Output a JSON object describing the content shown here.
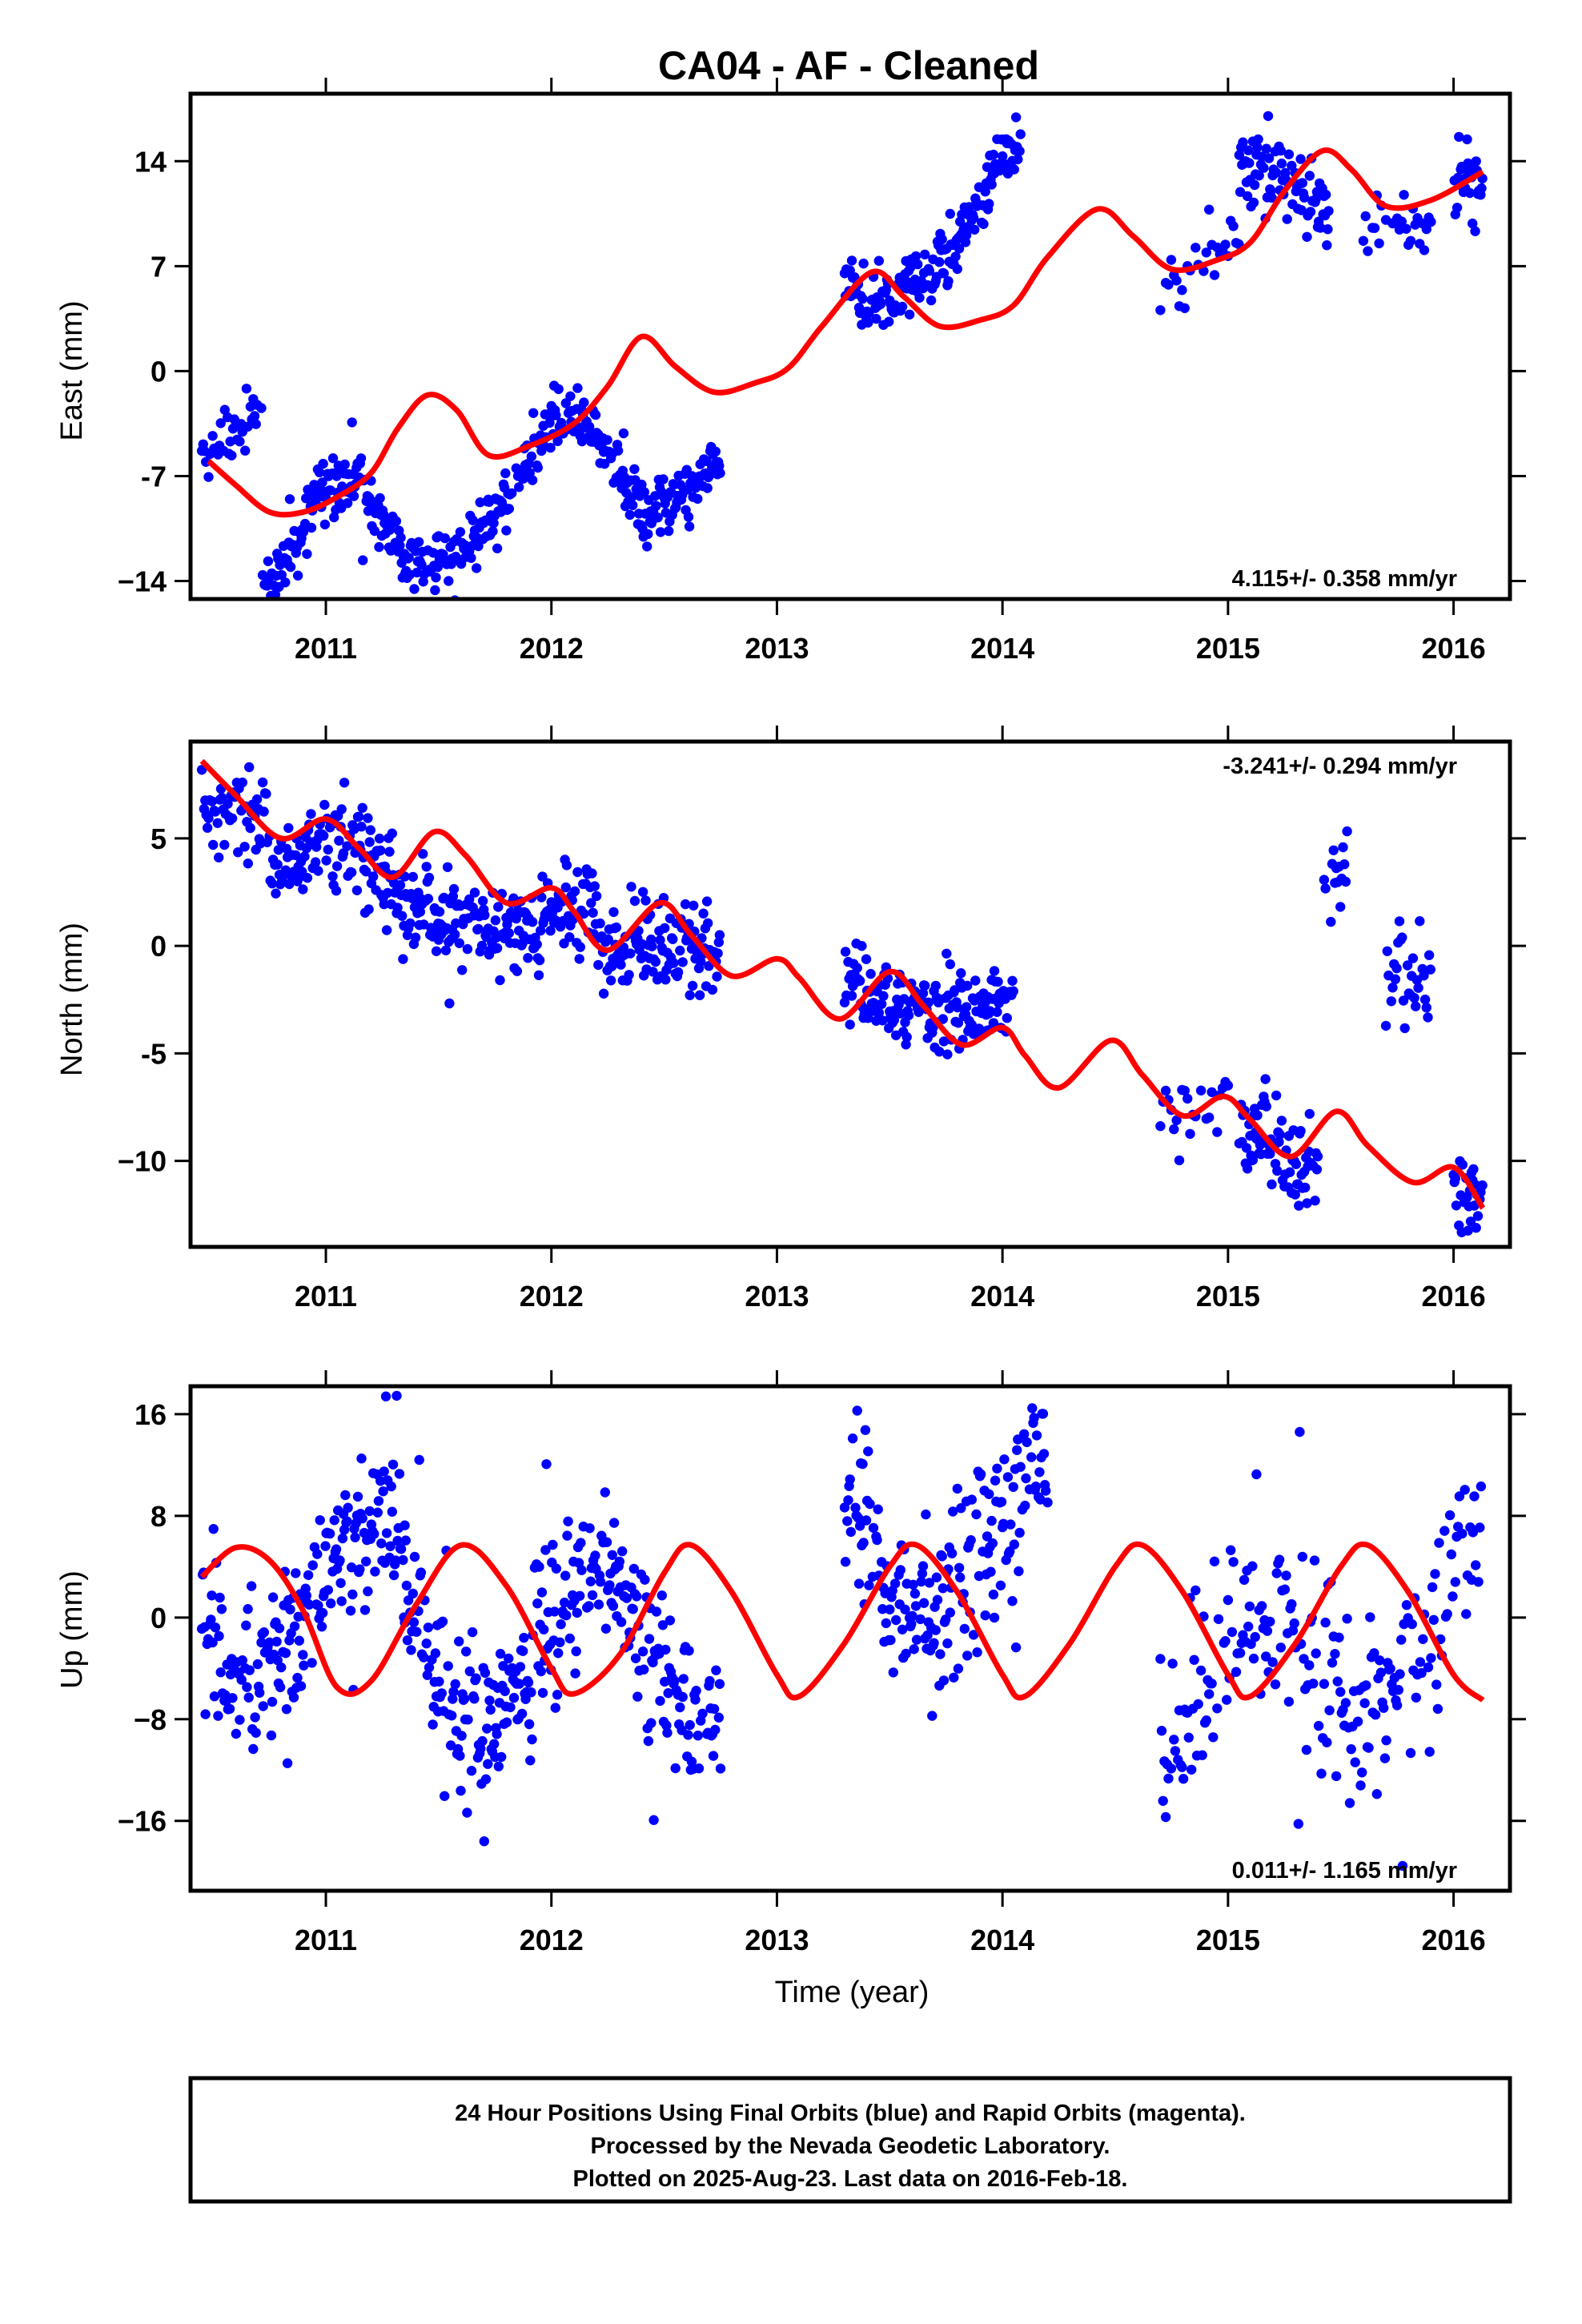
{
  "figure": {
    "title": "CA04  - AF - Cleaned",
    "caption": [
      "24 Hour Positions Using Final Orbits (blue) and Rapid Orbits (magenta).",
      "Processed by the Nevada Geodetic Laboratory.",
      "Plotted on 2025-Aug-23. Last data on 2016-Feb-18."
    ],
    "xlabel": "Time (year)"
  },
  "chart_data": [
    {
      "type": "scatter",
      "ylabel": "East (mm)",
      "rate_text": "4.115+/- 0.358 mm/yr",
      "rate_position": "bottom-right",
      "xlim": [
        2010.4,
        2016.25
      ],
      "ylim": [
        -15.2,
        18.5
      ],
      "xticks": [
        2011,
        2012,
        2013,
        2014,
        2015,
        2016
      ],
      "xtick_labels": [
        "2011",
        "2012",
        "2013",
        "2014",
        "2015",
        "2016"
      ],
      "yticks": [
        -14,
        -7,
        0,
        7,
        14
      ],
      "ytick_labels": [
        "−14",
        "-7",
        "0",
        "7",
        "14"
      ],
      "series": [
        {
          "role": "daily positions",
          "color": "#0000ff",
          "segments": [
            {
              "start": 2010.45,
              "end": 2010.72,
              "at": 2010.45,
              "level": -5.5,
              "rate": 4.115,
              "annual_amp": 3.8,
              "annual_phase": 1.3,
              "semi_amp": 0.8,
              "semi_phase": 0.3,
              "noise": 1.0,
              "step": 0.006
            },
            {
              "start": 2010.72,
              "end": 2011.4,
              "at": 2011.0,
              "level": -7.8,
              "rate": 4.115,
              "annual_amp": 3.8,
              "annual_phase": 1.3,
              "semi_amp": 0.8,
              "semi_phase": 0.3,
              "noise": 1.0,
              "step": 0.004
            },
            {
              "start": 2011.4,
              "end": 2012.75,
              "at": 2012.0,
              "level": -3.6,
              "rate": 4.115,
              "annual_amp": 3.8,
              "annual_phase": 1.3,
              "semi_amp": 0.8,
              "semi_phase": 0.3,
              "noise": 1.0,
              "step": 0.004
            },
            {
              "start": 2013.3,
              "end": 2014.08,
              "at": 2013.5,
              "level": 4.5,
              "rate": 4.115,
              "annual_amp": 3.8,
              "annual_phase": 1.3,
              "semi_amp": 0.8,
              "semi_phase": 0.3,
              "noise": 1.0,
              "step": 0.004
            },
            {
              "start": 2014.7,
              "end": 2015.05,
              "at": 2014.85,
              "level": 7.0,
              "rate": 4.115,
              "annual_amp": 1.5,
              "annual_phase": 1.3,
              "semi_amp": 0.4,
              "semi_phase": 0.3,
              "noise": 1.0,
              "step": 0.012
            },
            {
              "start": 2015.05,
              "end": 2015.45,
              "at": 2015.3,
              "level": 12.0,
              "rate": 4.115,
              "annual_amp": 2.0,
              "annual_phase": 1.3,
              "semi_amp": 0.4,
              "semi_phase": 0.3,
              "noise": 1.3,
              "step": 0.004
            },
            {
              "start": 2015.6,
              "end": 2015.9,
              "at": 2015.75,
              "level": 9.8,
              "rate": 0.0,
              "annual_amp": 0.0,
              "annual_phase": 0.0,
              "semi_amp": 0.0,
              "semi_phase": 0.0,
              "noise": 1.2,
              "step": 0.01
            },
            {
              "start": 2016.0,
              "end": 2016.13,
              "at": 2016.05,
              "level": 12.3,
              "rate": 0.0,
              "annual_amp": 0.0,
              "annual_phase": 0.0,
              "semi_amp": 0.0,
              "semi_phase": 0.0,
              "noise": 1.2,
              "step": 0.004
            }
          ]
        },
        {
          "role": "model fit",
          "color": "#ff0000",
          "points": [
            [
              2010.48,
              -6.0
            ],
            [
              2010.6,
              -7.6
            ],
            [
              2010.75,
              -9.4
            ],
            [
              2010.9,
              -9.4
            ],
            [
              2011.05,
              -8.4
            ],
            [
              2011.2,
              -6.8
            ],
            [
              2011.32,
              -3.8
            ],
            [
              2011.45,
              -1.6
            ],
            [
              2011.58,
              -2.6
            ],
            [
              2011.72,
              -5.6
            ],
            [
              2011.9,
              -5.0
            ],
            [
              2012.1,
              -3.5
            ],
            [
              2012.25,
              -1.0
            ],
            [
              2012.4,
              2.3
            ],
            [
              2012.55,
              0.3
            ],
            [
              2012.72,
              -1.4
            ],
            [
              2012.9,
              -0.8
            ],
            [
              2013.05,
              0.2
            ],
            [
              2013.2,
              3.0
            ],
            [
              2013.42,
              6.6
            ],
            [
              2013.56,
              5.0
            ],
            [
              2013.72,
              3.0
            ],
            [
              2013.9,
              3.4
            ],
            [
              2014.05,
              4.4
            ],
            [
              2014.2,
              7.6
            ],
            [
              2014.42,
              10.8
            ],
            [
              2014.58,
              9.0
            ],
            [
              2014.75,
              6.8
            ],
            [
              2014.95,
              7.4
            ],
            [
              2015.1,
              8.6
            ],
            [
              2015.25,
              12.0
            ],
            [
              2015.42,
              14.7
            ],
            [
              2015.55,
              13.4
            ],
            [
              2015.7,
              11.0
            ],
            [
              2015.9,
              11.4
            ],
            [
              2016.13,
              13.3
            ]
          ]
        }
      ]
    },
    {
      "type": "scatter",
      "ylabel": "North (mm)",
      "rate_text": "-3.241+/- 0.294 mm/yr",
      "rate_position": "top-right",
      "xlim": [
        2010.4,
        2016.25
      ],
      "ylim": [
        -14.0,
        9.5
      ],
      "xticks": [
        2011,
        2012,
        2013,
        2014,
        2015,
        2016
      ],
      "xtick_labels": [
        "2011",
        "2012",
        "2013",
        "2014",
        "2015",
        "2016"
      ],
      "yticks": [
        -10,
        -5,
        0,
        5
      ],
      "ytick_labels": [
        "−10",
        "-5",
        "0",
        "5"
      ],
      "series": [
        {
          "role": "daily positions",
          "color": "#0000ff",
          "segments": [
            {
              "start": 2010.45,
              "end": 2010.75,
              "at": 2010.6,
              "level": 6.5,
              "rate": -3.241,
              "annual_amp": 1.2,
              "annual_phase": 1.0,
              "semi_amp": 0.4,
              "semi_phase": 0.0,
              "noise": 1.0,
              "step": 0.005
            },
            {
              "start": 2010.75,
              "end": 2011.5,
              "at": 2011.1,
              "level": 5.0,
              "rate": -3.241,
              "annual_amp": 1.2,
              "annual_phase": 1.0,
              "semi_amp": 0.4,
              "semi_phase": 0.0,
              "noise": 1.1,
              "step": 0.004
            },
            {
              "start": 2011.5,
              "end": 2012.35,
              "at": 2012.0,
              "level": 1.6,
              "rate": -3.241,
              "annual_amp": 1.2,
              "annual_phase": 1.0,
              "semi_amp": 0.4,
              "semi_phase": 0.0,
              "noise": 1.0,
              "step": 0.004
            },
            {
              "start": 2012.35,
              "end": 2012.75,
              "at": 2012.55,
              "level": 0.0,
              "rate": -3.241,
              "annual_amp": 1.2,
              "annual_phase": 1.0,
              "semi_amp": 0.4,
              "semi_phase": 0.0,
              "noise": 1.0,
              "step": 0.004
            },
            {
              "start": 2013.3,
              "end": 2014.05,
              "at": 2013.7,
              "level": -3.0,
              "rate": -3.241,
              "annual_amp": 1.2,
              "annual_phase": 1.0,
              "semi_amp": 0.4,
              "semi_phase": 0.0,
              "noise": 1.0,
              "step": 0.004
            },
            {
              "start": 2014.7,
              "end": 2015.0,
              "at": 2014.85,
              "level": -7.5,
              "rate": -3.241,
              "annual_amp": 0.5,
              "annual_phase": 1.0,
              "semi_amp": 0.0,
              "semi_phase": 0.0,
              "noise": 0.8,
              "step": 0.012
            },
            {
              "start": 2015.05,
              "end": 2015.4,
              "at": 2015.2,
              "level": -9.3,
              "rate": -3.241,
              "annual_amp": 0.5,
              "annual_phase": 1.0,
              "semi_amp": 0.0,
              "semi_phase": 0.0,
              "noise": 1.0,
              "step": 0.004
            },
            {
              "start": 2015.42,
              "end": 2015.53,
              "at": 2015.47,
              "level": 3.0,
              "rate": 0.0,
              "annual_amp": 0.0,
              "annual_phase": 0.0,
              "semi_amp": 0.0,
              "semi_phase": 0.0,
              "noise": 1.0,
              "step": 0.006
            },
            {
              "start": 2015.7,
              "end": 2015.9,
              "at": 2015.8,
              "level": -1.0,
              "rate": 0.0,
              "annual_amp": 0.0,
              "annual_phase": 0.0,
              "semi_amp": 0.0,
              "semi_phase": 0.0,
              "noise": 1.3,
              "step": 0.006
            },
            {
              "start": 2016.0,
              "end": 2016.13,
              "at": 2016.07,
              "level": -11.8,
              "rate": 0.0,
              "annual_amp": 0.0,
              "annual_phase": 0.0,
              "semi_amp": 0.0,
              "semi_phase": 0.0,
              "noise": 1.0,
              "step": 0.004
            }
          ]
        },
        {
          "role": "model fit",
          "color": "#ff0000",
          "points": [
            [
              2010.45,
              8.6
            ],
            [
              2010.6,
              7.0
            ],
            [
              2010.8,
              5.0
            ],
            [
              2011.0,
              5.9
            ],
            [
              2011.15,
              4.5
            ],
            [
              2011.3,
              3.2
            ],
            [
              2011.48,
              5.3
            ],
            [
              2011.62,
              4.2
            ],
            [
              2011.8,
              2.0
            ],
            [
              2012.0,
              2.7
            ],
            [
              2012.1,
              1.6
            ],
            [
              2012.25,
              -0.2
            ],
            [
              2012.48,
              2.0
            ],
            [
              2012.62,
              0.5
            ],
            [
              2012.8,
              -1.4
            ],
            [
              2013.0,
              -0.6
            ],
            [
              2013.1,
              -1.5
            ],
            [
              2013.28,
              -3.4
            ],
            [
              2013.5,
              -1.2
            ],
            [
              2013.65,
              -2.8
            ],
            [
              2013.82,
              -4.6
            ],
            [
              2014.0,
              -3.8
            ],
            [
              2014.1,
              -5.1
            ],
            [
              2014.25,
              -6.6
            ],
            [
              2014.48,
              -4.4
            ],
            [
              2014.62,
              -6.0
            ],
            [
              2014.8,
              -7.9
            ],
            [
              2014.98,
              -7.0
            ],
            [
              2015.1,
              -8.1
            ],
            [
              2015.28,
              -9.8
            ],
            [
              2015.48,
              -7.7
            ],
            [
              2015.62,
              -9.3
            ],
            [
              2015.82,
              -11.0
            ],
            [
              2016.0,
              -10.3
            ],
            [
              2016.13,
              -12.2
            ]
          ]
        }
      ]
    },
    {
      "type": "scatter",
      "ylabel": "Up (mm)",
      "rate_text": "0.011+/- 1.165 mm/yr",
      "rate_position": "bottom-right",
      "xlim": [
        2010.4,
        2016.25
      ],
      "ylim": [
        -21.5,
        18.2
      ],
      "xticks": [
        2011,
        2012,
        2013,
        2014,
        2015,
        2016
      ],
      "xtick_labels": [
        "2011",
        "2012",
        "2013",
        "2014",
        "2015",
        "2016"
      ],
      "yticks": [
        -16,
        -8,
        0,
        8,
        16
      ],
      "ytick_labels": [
        "−16",
        "−8",
        "0",
        "8",
        "16"
      ],
      "series": [
        {
          "role": "daily positions",
          "color": "#0000ff",
          "segments": [
            {
              "start": 2010.45,
              "end": 2011.35,
              "at": 2010.9,
              "level": 0.0,
              "rate": 0.011,
              "annual_amp": 6.0,
              "annual_phase": 0.4,
              "semi_amp": 0.0,
              "semi_phase": 0.0,
              "noise": 3.4,
              "step": 0.004
            },
            {
              "start": 2011.35,
              "end": 2012.75,
              "at": 2012.0,
              "level": 0.0,
              "rate": 0.011,
              "annual_amp": 6.0,
              "annual_phase": 0.4,
              "semi_amp": 0.0,
              "semi_phase": 0.0,
              "noise": 3.2,
              "step": 0.004
            },
            {
              "start": 2013.3,
              "end": 2014.2,
              "at": 2013.7,
              "level": 0.0,
              "rate": 0.011,
              "annual_amp": 6.0,
              "annual_phase": 0.4,
              "semi_amp": 0.0,
              "semi_phase": 0.0,
              "noise": 3.4,
              "step": 0.004
            },
            {
              "start": 2014.7,
              "end": 2015.6,
              "at": 2015.1,
              "level": 0.0,
              "rate": 0.011,
              "annual_amp": 6.0,
              "annual_phase": 0.4,
              "semi_amp": 0.0,
              "semi_phase": 0.0,
              "noise": 4.2,
              "step": 0.006
            },
            {
              "start": 2015.6,
              "end": 2016.13,
              "at": 2015.9,
              "level": 0.0,
              "rate": 0.011,
              "annual_amp": 6.0,
              "annual_phase": 0.4,
              "semi_amp": 0.0,
              "semi_phase": 0.0,
              "noise": 4.0,
              "step": 0.006
            }
          ]
        },
        {
          "role": "model fit",
          "color": "#ff0000",
          "points": [
            [
              2010.45,
              3.2
            ],
            [
              2010.6,
              5.5
            ],
            [
              2010.75,
              4.5
            ],
            [
              2010.9,
              0.5
            ],
            [
              2011.05,
              -5.5
            ],
            [
              2011.2,
              -5.0
            ],
            [
              2011.4,
              1.0
            ],
            [
              2011.6,
              5.7
            ],
            [
              2011.8,
              2.5
            ],
            [
              2012.0,
              -4.0
            ],
            [
              2012.1,
              -6.0
            ],
            [
              2012.3,
              -3.0
            ],
            [
              2012.5,
              3.5
            ],
            [
              2012.62,
              5.7
            ],
            [
              2012.8,
              2.0
            ],
            [
              2013.0,
              -4.5
            ],
            [
              2013.1,
              -6.2
            ],
            [
              2013.3,
              -2.0
            ],
            [
              2013.5,
              4.0
            ],
            [
              2013.62,
              5.7
            ],
            [
              2013.8,
              2.0
            ],
            [
              2014.0,
              -4.5
            ],
            [
              2014.1,
              -6.2
            ],
            [
              2014.3,
              -2.0
            ],
            [
              2014.5,
              4.0
            ],
            [
              2014.62,
              5.7
            ],
            [
              2014.8,
              2.0
            ],
            [
              2015.0,
              -4.5
            ],
            [
              2015.1,
              -6.2
            ],
            [
              2015.3,
              -2.0
            ],
            [
              2015.5,
              4.0
            ],
            [
              2015.62,
              5.7
            ],
            [
              2015.8,
              2.0
            ],
            [
              2016.0,
              -4.5
            ],
            [
              2016.13,
              -6.5
            ]
          ]
        }
      ]
    }
  ]
}
